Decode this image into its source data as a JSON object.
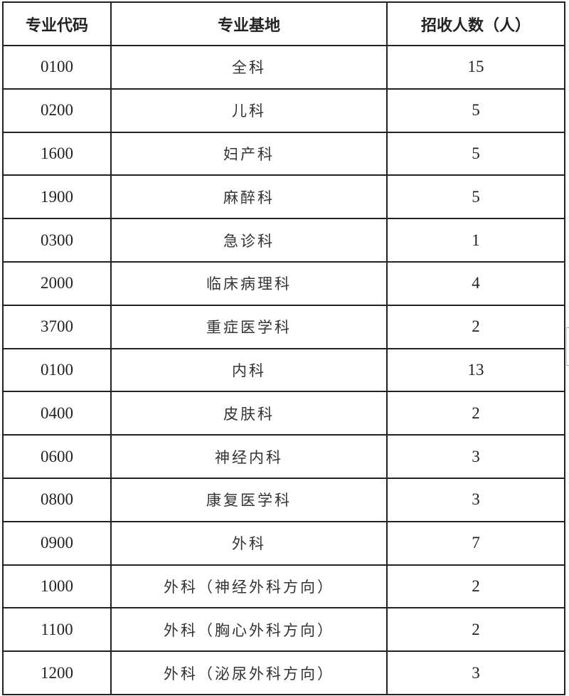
{
  "headers": [
    "专业代码",
    "专业基地",
    "招收人数（人）"
  ],
  "rows": [
    {
      "code": "0100",
      "base": "全科",
      "count": "15"
    },
    {
      "code": "0200",
      "base": "儿科",
      "count": "5"
    },
    {
      "code": "1600",
      "base": "妇产科",
      "count": "5"
    },
    {
      "code": "1900",
      "base": "麻醉科",
      "count": "5"
    },
    {
      "code": "0300",
      "base": "急诊科",
      "count": "1"
    },
    {
      "code": "2000",
      "base": "临床病理科",
      "count": "4"
    },
    {
      "code": "3700",
      "base": "重症医学科",
      "count": "2"
    },
    {
      "code": "0100",
      "base": "内科",
      "count": "13"
    },
    {
      "code": "0400",
      "base": "皮肤科",
      "count": "2"
    },
    {
      "code": "0600",
      "base": "神经内科",
      "count": "3"
    },
    {
      "code": "0800",
      "base": "康复医学科",
      "count": "3"
    },
    {
      "code": "0900",
      "base": "外科",
      "count": "7"
    },
    {
      "code": "1000",
      "base": "外科（神经外科方向）",
      "count": "2"
    },
    {
      "code": "1100",
      "base": "外科（胸心外科方向）",
      "count": "2"
    },
    {
      "code": "1200",
      "base": "外科（泌尿外科方向）",
      "count": "3"
    }
  ]
}
